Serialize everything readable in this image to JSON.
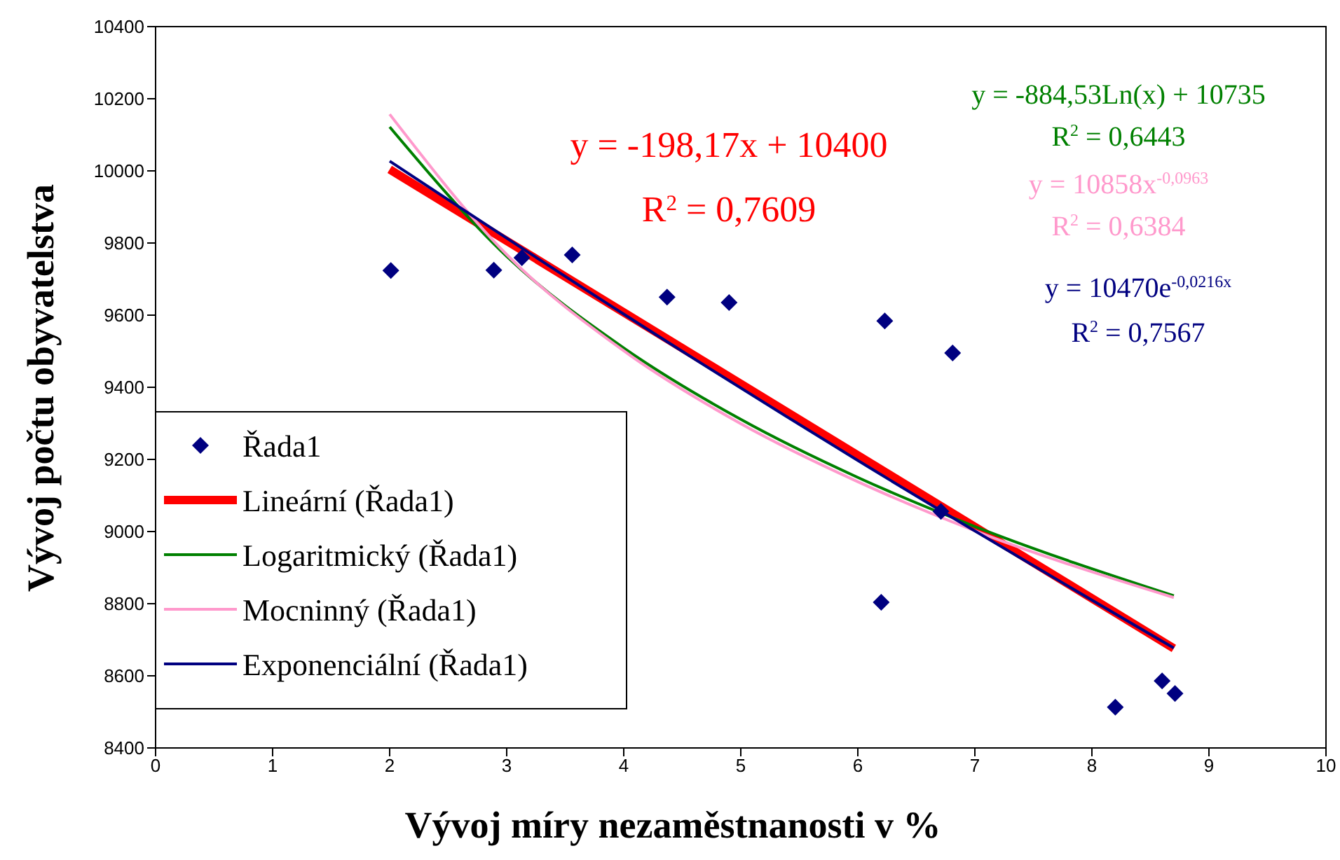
{
  "chart_data": {
    "type": "scatter",
    "xlabel": "Vývoj míry nezaměstnanosti v %",
    "ylabel": "Vývoj počtu obyvatelstva",
    "xlim": [
      0,
      10
    ],
    "xticks": [
      0,
      1,
      2,
      3,
      4,
      5,
      6,
      7,
      8,
      9,
      10
    ],
    "ylim": [
      8400,
      10400
    ],
    "yticks": [
      8400,
      8600,
      8800,
      9000,
      9200,
      9400,
      9600,
      9800,
      10000,
      10200,
      10400
    ],
    "legend": "left",
    "series": [
      {
        "name": "Řada1",
        "marker": "diamond",
        "color": "#000080",
        "x": [
          2.01,
          2.89,
          3.13,
          3.56,
          4.37,
          4.9,
          6.23,
          6.81,
          6.71,
          6.2,
          8.2,
          8.6,
          8.71
        ],
        "values": [
          9724,
          9725,
          9759,
          9767,
          9650,
          9635,
          9584,
          9495,
          9056,
          8804,
          8513,
          8586,
          8551
        ]
      },
      {
        "name": "Lineární (Řada1)",
        "type": "line",
        "color": "#ff0000",
        "x": [
          2,
          8.7
        ],
        "values": [
          10004,
          8676
        ]
      },
      {
        "name": "Logaritmický (Řada1)",
        "type": "line",
        "color": "#008000",
        "x": [
          2,
          3,
          4,
          5,
          6,
          7,
          8.7
        ],
        "values": [
          10122,
          9763,
          9509,
          9311,
          9150,
          9014,
          8822
        ]
      },
      {
        "name": "Mocninný (Řada1)",
        "type": "line",
        "color": "#ff99cc",
        "x": [
          2,
          3,
          4,
          5,
          6,
          7,
          8.7
        ],
        "values": [
          10157,
          9768,
          9501,
          9299,
          9138,
          9002,
          8817
        ]
      },
      {
        "name": "Exponenciální (Řada1)",
        "type": "line",
        "color": "#000080",
        "x": [
          2,
          4,
          6,
          8.7
        ],
        "values": [
          10027,
          9603,
          9197,
          8677
        ]
      }
    ],
    "annotations": [
      "y = -198,17x + 10400",
      "R$^{2}$ = 0,7609",
      "y = -884,53Ln(x) + 10735",
      "R$^{2}$ = 0,6443",
      "y = 10858x$^{-0,0963}$",
      "R$^{2}$ = 0,6384",
      "y = 10470e$^{-0,0216x}$",
      "R$^{2}$ = 0,7567"
    ]
  }
}
